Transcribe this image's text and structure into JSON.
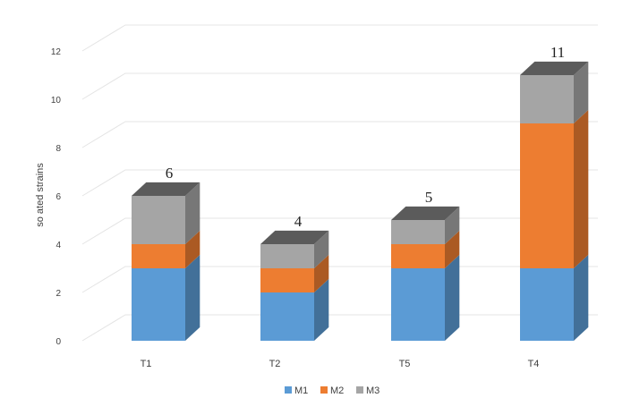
{
  "chart_data": {
    "type": "bar",
    "stacked": true,
    "style": "3d-column",
    "ylabel": "so ated strains",
    "xlabel": "",
    "ylim": [
      0,
      12
    ],
    "yticks": [
      "0",
      "2",
      "4",
      "6",
      "8",
      "10",
      "12"
    ],
    "categories": [
      "T1",
      "T2",
      "T5",
      "T4"
    ],
    "series": [
      {
        "name": "M1",
        "color": "#5b9bd5",
        "values": [
          3,
          2,
          3,
          3
        ]
      },
      {
        "name": "M2",
        "color": "#ed7d31",
        "values": [
          1,
          1,
          1,
          6
        ]
      },
      {
        "name": "M3",
        "color": "#a5a5a5",
        "values": [
          2,
          1,
          1,
          2
        ]
      }
    ],
    "totals": [
      "6",
      "4",
      "5",
      "11"
    ],
    "grid": true,
    "legend_position": "bottom"
  }
}
